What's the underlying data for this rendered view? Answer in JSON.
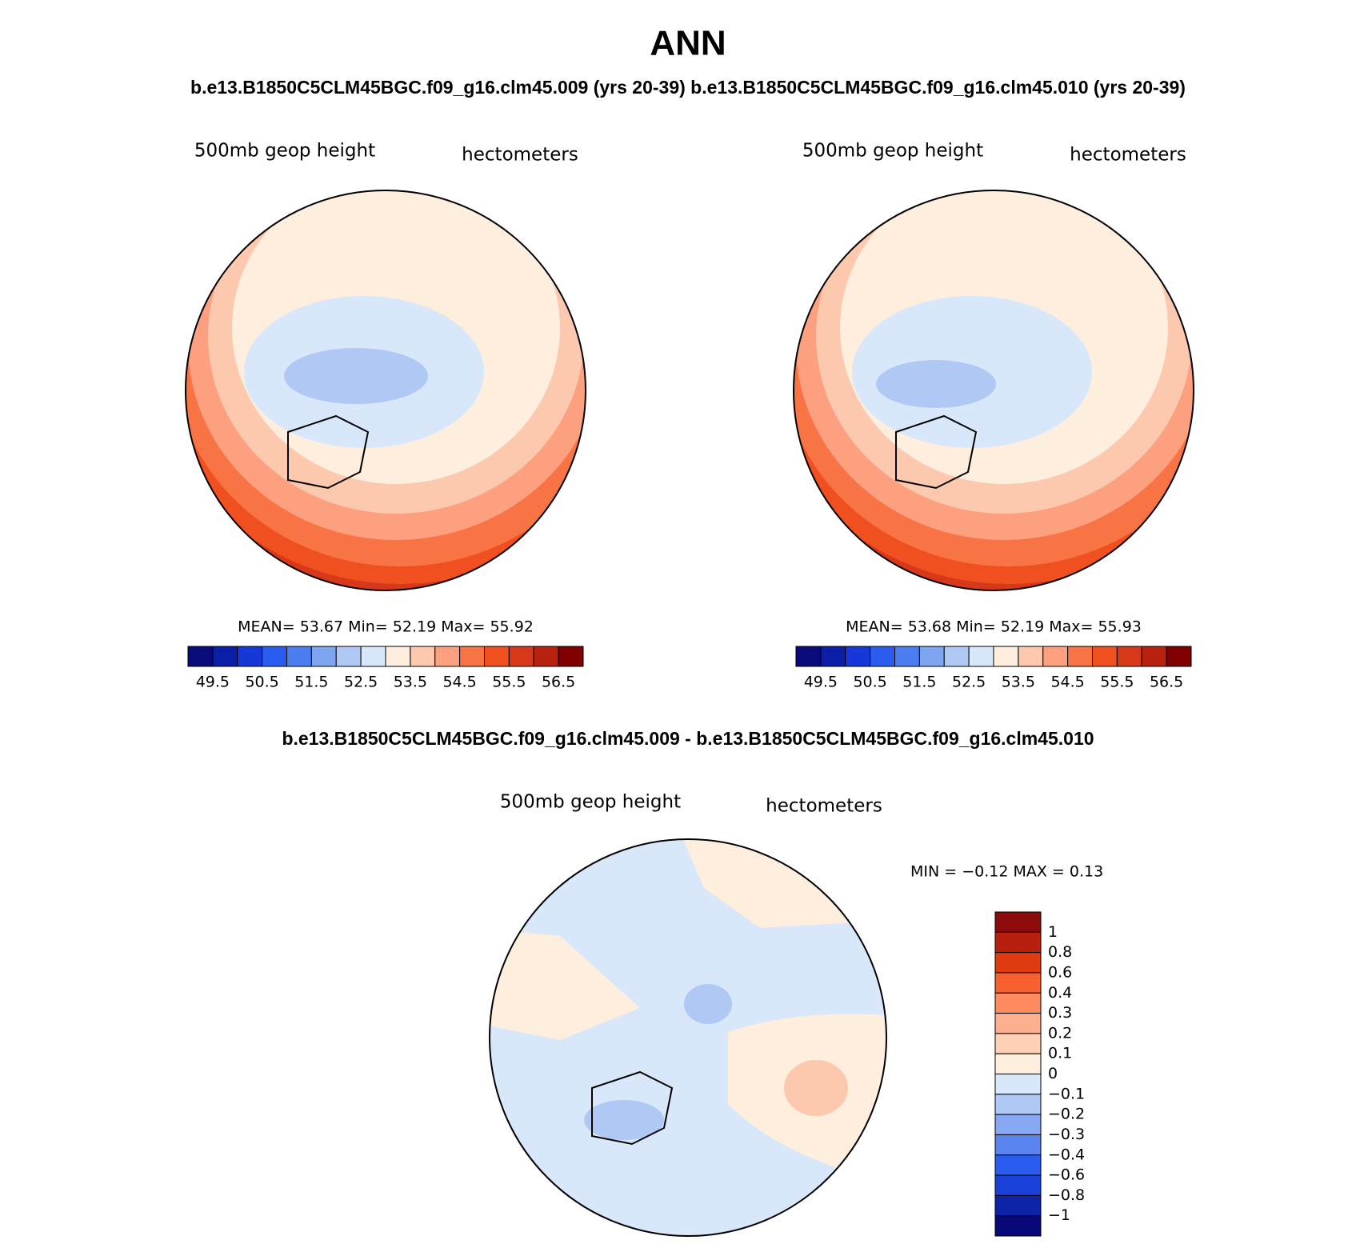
{
  "title": "ANN",
  "subtitle": "b.e13.B1850C5CLM45BGC.f09_g16.clm45.009 (yrs 20-39)  b.e13.B1850C5CLM45BGC.f09_g16.clm45.010 (yrs 20-39)",
  "panels": [
    {
      "variable": "500mb geop height",
      "units": "hectometers",
      "stats": "MEAN=   53.67   Min=   52.19   Max=   55.92",
      "colorbar": {
        "labels": [
          "49.5",
          "50.5",
          "51.5",
          "52.5",
          "53.5",
          "54.5",
          "55.5",
          "56.5"
        ],
        "colors": [
          "#0a0a7a",
          "#0a1ea8",
          "#1638d8",
          "#2a5cf0",
          "#4a7ef0",
          "#7ea6f0",
          "#b0c8f4",
          "#d8e8fa",
          "#feeede",
          "#fcc8ae",
          "#fca080",
          "#f87444",
          "#f05020",
          "#d8381a",
          "#b82010",
          "#800000"
        ]
      }
    },
    {
      "variable": "500mb geop height",
      "units": "hectometers",
      "stats": "MEAN=   53.68   Min=   52.19   Max=   55.93",
      "colorbar": {
        "labels": [
          "49.5",
          "50.5",
          "51.5",
          "52.5",
          "53.5",
          "54.5",
          "55.5",
          "56.5"
        ],
        "colors": [
          "#0a0a7a",
          "#0a1ea8",
          "#1638d8",
          "#2a5cf0",
          "#4a7ef0",
          "#7ea6f0",
          "#b0c8f4",
          "#d8e8fa",
          "#feeede",
          "#fcc8ae",
          "#fca080",
          "#f87444",
          "#f05020",
          "#d8381a",
          "#b82010",
          "#800000"
        ]
      }
    }
  ],
  "difference": {
    "title": "b.e13.B1850C5CLM45BGC.f09_g16.clm45.009 - b.e13.B1850C5CLM45BGC.f09_g16.clm45.010",
    "variable": "500mb geop height",
    "units": "hectometers",
    "stats": "MIN =   −0.12  MAX =     0.13",
    "colorbar": {
      "labels": [
        "1",
        "0.8",
        "0.6",
        "0.4",
        "0.3",
        "0.2",
        "0.1",
        "0",
        "−0.1",
        "−0.2",
        "−0.3",
        "−0.4",
        "−0.6",
        "−0.8",
        "−1"
      ],
      "colors": [
        "#8c0a0a",
        "#b8200e",
        "#e03a10",
        "#f86030",
        "#fc8c60",
        "#fcb090",
        "#fed0b8",
        "#feeede",
        "#d8e8fa",
        "#b0c8f4",
        "#86a8f4",
        "#5a84f0",
        "#2a5cf0",
        "#1a40d8",
        "#0e24a8",
        "#08087a"
      ]
    }
  }
}
